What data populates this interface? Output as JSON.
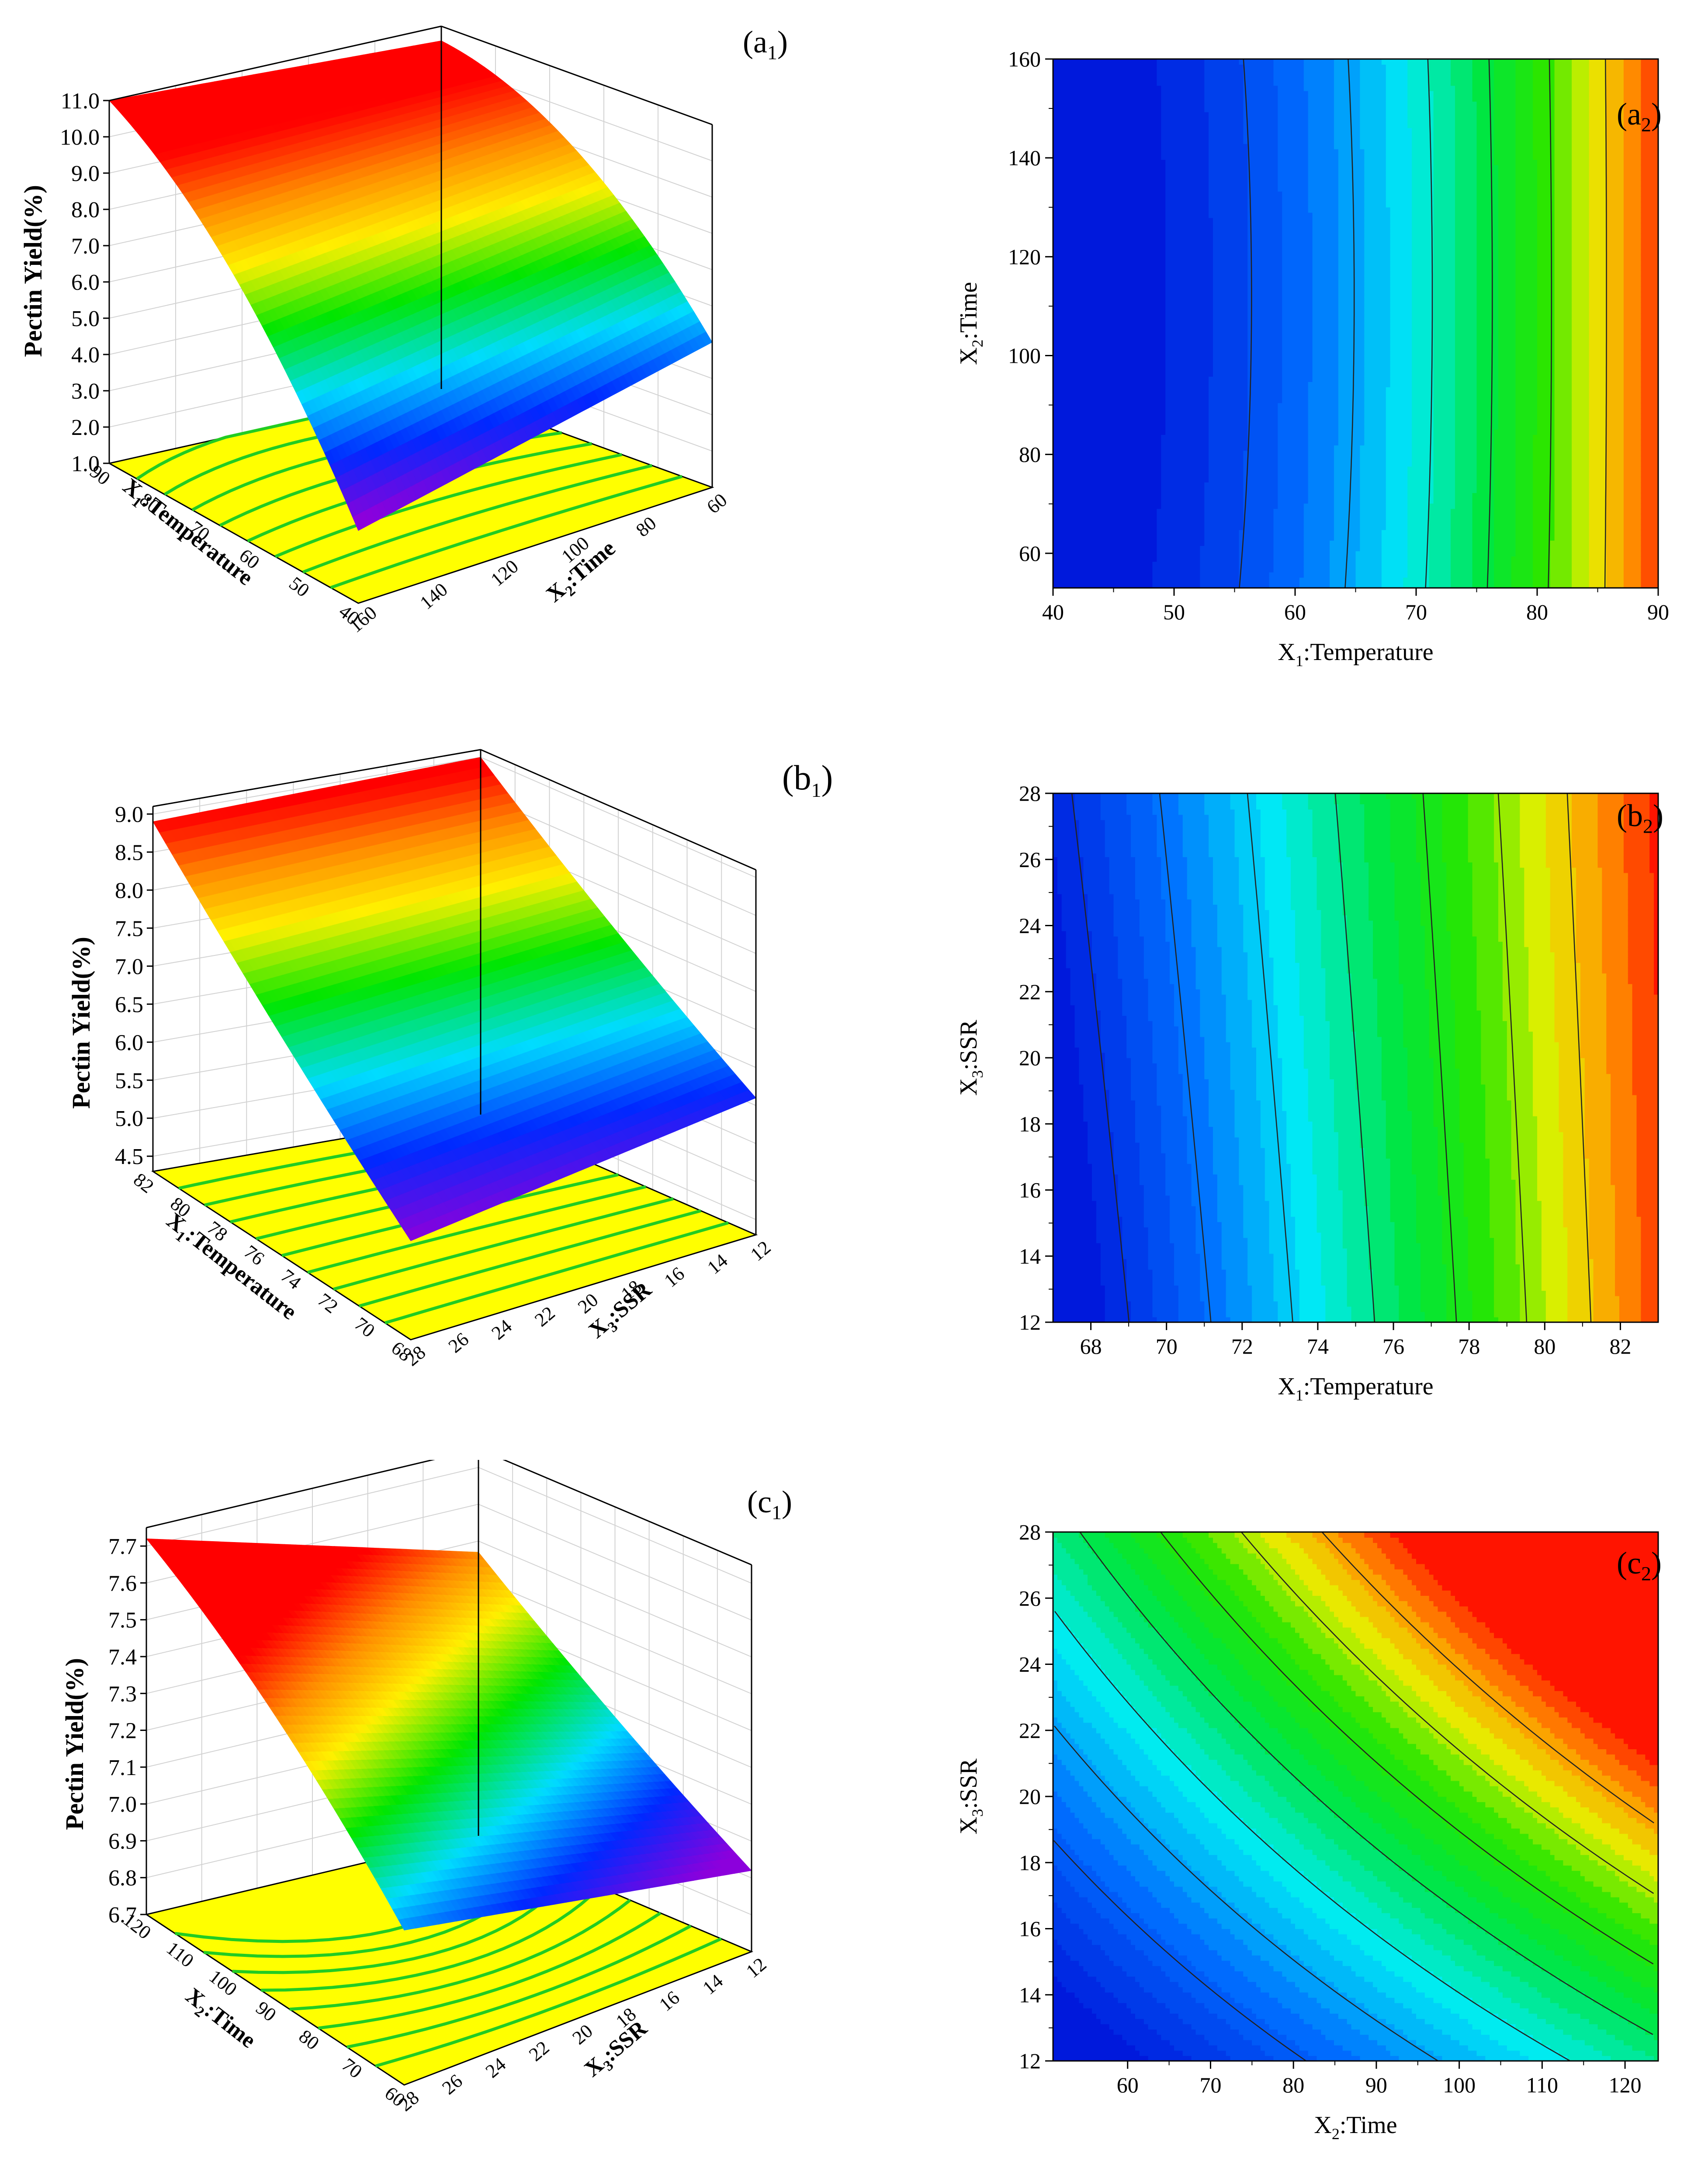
{
  "figure": {
    "panel_labels": {
      "a1": {
        "letter": "a",
        "num": "1"
      },
      "a2": {
        "letter": "a",
        "num": "2"
      },
      "b1": {
        "letter": "b",
        "num": "1"
      },
      "b2": {
        "letter": "b",
        "num": "2"
      },
      "c1": {
        "letter": "c",
        "num": "1"
      },
      "c2": {
        "letter": "c",
        "num": "2"
      }
    }
  },
  "chart_data": [
    {
      "id": "a1",
      "type": "surface3d",
      "zlabel": "Pectin Yield(%)",
      "xlabel": {
        "main": "X",
        "sub": "1",
        "rest": ":Temperature"
      },
      "ylabel": {
        "main": "X",
        "sub": "2",
        "rest": ":Time"
      },
      "x_ticks": [
        "90",
        "80",
        "70",
        "60",
        "50",
        "40"
      ],
      "y_ticks": [
        "60",
        "80",
        "100",
        "120",
        "140",
        "160"
      ],
      "z_ticks": [
        "1.0",
        "2.0",
        "3.0",
        "4.0",
        "5.0",
        "6.0",
        "7.0",
        "8.0",
        "9.0",
        "10.0",
        "11.0"
      ],
      "zlim": [
        1.0,
        11.0
      ],
      "corners": {
        "back_left": 11.0,
        "back_right": 10.6,
        "front_left": 3.0,
        "front_right": 5.0
      },
      "floor_contour": "yellow with green contour lines"
    },
    {
      "id": "a2",
      "type": "contour",
      "xlabel": {
        "main": "X",
        "sub": "1",
        "rest": ":Temperature"
      },
      "ylabel": {
        "main": "X",
        "sub": "2",
        "rest": ":Time"
      },
      "x_ticks": [
        "40",
        "50",
        "60",
        "70",
        "80",
        "90"
      ],
      "y_ticks": [
        "60",
        "80",
        "100",
        "120",
        "140",
        "160"
      ],
      "xlim": [
        40,
        90
      ],
      "ylim": [
        53,
        160
      ],
      "contour_lines_x_at_bottom": [
        60,
        68,
        74,
        79,
        84,
        88
      ]
    },
    {
      "id": "b1",
      "type": "surface3d",
      "zlabel": "Pectin Yield(%)",
      "xlabel": {
        "main": "X",
        "sub": "1",
        "rest": ":Temperature"
      },
      "ylabel": {
        "main": "X",
        "sub": "3",
        "rest": ":SSR"
      },
      "x_ticks": [
        "82",
        "80",
        "78",
        "76",
        "74",
        "72",
        "70",
        "68"
      ],
      "y_ticks": [
        "12",
        "14",
        "16",
        "18",
        "20",
        "22",
        "24",
        "26",
        "28"
      ],
      "z_ticks": [
        "4.5",
        "5.0",
        "5.5",
        "6.0",
        "6.5",
        "7.0",
        "7.5",
        "8.0",
        "8.5",
        "9.0"
      ],
      "zlim": [
        4.3,
        9.1
      ],
      "corners": {
        "back_left": 8.9,
        "back_right": 9.0,
        "front_left": 5.6,
        "front_right": 6.1
      }
    },
    {
      "id": "b2",
      "type": "contour",
      "xlabel": {
        "main": "X",
        "sub": "1",
        "rest": ":Temperature"
      },
      "ylabel": {
        "main": "X",
        "sub": "3",
        "rest": ":SSR"
      },
      "x_ticks": [
        "68",
        "70",
        "72",
        "74",
        "76",
        "78",
        "80",
        "82"
      ],
      "y_ticks": [
        "12",
        "14",
        "16",
        "18",
        "20",
        "22",
        "24",
        "26",
        "28"
      ],
      "xlim": [
        67,
        83
      ],
      "ylim": [
        12,
        28
      ]
    },
    {
      "id": "c1",
      "type": "surface3d",
      "zlabel": "Pectin Yield(%)",
      "xlabel": {
        "main": "X",
        "sub": "2",
        "rest": ":Time"
      },
      "ylabel": {
        "main": "X",
        "sub": "3",
        "rest": ":SSR"
      },
      "x_ticks": [
        "120",
        "110",
        "100",
        "90",
        "80",
        "70",
        "60"
      ],
      "y_ticks": [
        "12",
        "14",
        "16",
        "18",
        "20",
        "22",
        "24",
        "26",
        "28"
      ],
      "z_ticks": [
        "6.7",
        "6.8",
        "6.9",
        "7.0",
        "7.1",
        "7.2",
        "7.3",
        "7.4",
        "7.5",
        "7.6",
        "7.7"
      ],
      "zlim": [
        6.7,
        7.75
      ],
      "corners": {
        "back_left": 7.72,
        "back_right": 7.47,
        "front_left": 7.12,
        "front_right": 6.92
      }
    },
    {
      "id": "c2",
      "type": "contour",
      "xlabel": {
        "main": "X",
        "sub": "2",
        "rest": ":Time"
      },
      "ylabel": {
        "main": "X",
        "sub": "3",
        "rest": ":SSR"
      },
      "x_ticks": [
        "60",
        "70",
        "80",
        "90",
        "100",
        "110",
        "120"
      ],
      "y_ticks": [
        "12",
        "14",
        "16",
        "18",
        "20",
        "22",
        "24",
        "26",
        "28"
      ],
      "xlim": [
        51,
        124
      ],
      "ylim": [
        12,
        28
      ]
    }
  ]
}
